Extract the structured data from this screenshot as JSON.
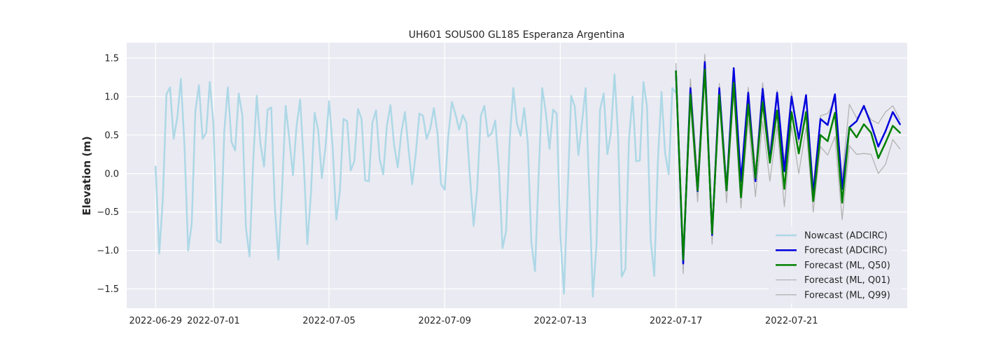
{
  "chart_data": {
    "type": "line",
    "title": "UH601 SOUS00 GL185 Esperanza Argentina",
    "xlabel": "",
    "ylabel": "Elevation (m)",
    "x_unit": "date",
    "xlim": [
      "2022-06-28T00:00",
      "2022-07-25T00:00"
    ],
    "ylim": [
      -1.75,
      1.7
    ],
    "xticks": [
      "2022-06-29",
      "2022-07-01",
      "2022-07-05",
      "2022-07-09",
      "2022-07-13",
      "2022-07-17",
      "2022-07-21"
    ],
    "yticks": [
      1.5,
      1.0,
      0.5,
      0.0,
      -0.5,
      -1.0,
      -1.5
    ],
    "ytick_labels": [
      "1.5",
      "1.0",
      "0.5",
      "0.0",
      "−0.5",
      "−1.0",
      "−1.5"
    ],
    "grid": true,
    "background": "#eaeaf2",
    "legend_position": "lower right",
    "series": [
      {
        "name": "Nowcast (ADCIRC)",
        "color": "#add8e6",
        "width": 2.5,
        "x": [
          "2022-06-29T00:00",
          "2022-06-29T03:00",
          "2022-06-29T06:00",
          "2022-06-29T09:00",
          "2022-06-29T12:00",
          "2022-06-29T15:00",
          "2022-06-29T18:00",
          "2022-06-29T21:00",
          "2022-06-30T00:00",
          "2022-06-30T03:00",
          "2022-06-30T06:00",
          "2022-06-30T09:00",
          "2022-06-30T12:00",
          "2022-06-30T15:00",
          "2022-06-30T18:00",
          "2022-06-30T21:00",
          "2022-07-01T00:00",
          "2022-07-01T03:00",
          "2022-07-01T06:00",
          "2022-07-01T09:00",
          "2022-07-01T12:00",
          "2022-07-01T15:00",
          "2022-07-01T18:00",
          "2022-07-01T21:00",
          "2022-07-02T00:00",
          "2022-07-02T03:00",
          "2022-07-02T06:00",
          "2022-07-02T09:00",
          "2022-07-02T12:00",
          "2022-07-02T15:00",
          "2022-07-02T18:00",
          "2022-07-02T21:00",
          "2022-07-03T00:00",
          "2022-07-03T03:00",
          "2022-07-03T06:00",
          "2022-07-03T09:00",
          "2022-07-03T12:00",
          "2022-07-03T15:00",
          "2022-07-03T18:00",
          "2022-07-03T21:00",
          "2022-07-04T00:00",
          "2022-07-04T03:00",
          "2022-07-04T06:00",
          "2022-07-04T09:00",
          "2022-07-04T12:00",
          "2022-07-04T15:00",
          "2022-07-04T18:00",
          "2022-07-04T21:00",
          "2022-07-05T00:00",
          "2022-07-05T03:00",
          "2022-07-05T06:00",
          "2022-07-05T09:00",
          "2022-07-05T12:00",
          "2022-07-05T15:00",
          "2022-07-05T18:00",
          "2022-07-05T21:00",
          "2022-07-06T00:00",
          "2022-07-06T03:00",
          "2022-07-06T06:00",
          "2022-07-06T09:00",
          "2022-07-06T12:00",
          "2022-07-06T15:00",
          "2022-07-06T18:00",
          "2022-07-06T21:00",
          "2022-07-07T00:00",
          "2022-07-07T03:00",
          "2022-07-07T06:00",
          "2022-07-07T09:00",
          "2022-07-07T12:00",
          "2022-07-07T15:00",
          "2022-07-07T18:00",
          "2022-07-07T21:00",
          "2022-07-08T00:00",
          "2022-07-08T03:00",
          "2022-07-08T06:00",
          "2022-07-08T09:00",
          "2022-07-08T12:00",
          "2022-07-08T15:00",
          "2022-07-08T18:00",
          "2022-07-08T21:00",
          "2022-07-09T00:00",
          "2022-07-09T03:00",
          "2022-07-09T06:00",
          "2022-07-09T09:00",
          "2022-07-09T12:00",
          "2022-07-09T15:00",
          "2022-07-09T18:00",
          "2022-07-09T21:00",
          "2022-07-10T00:00",
          "2022-07-10T03:00",
          "2022-07-10T06:00",
          "2022-07-10T09:00",
          "2022-07-10T12:00",
          "2022-07-10T15:00",
          "2022-07-10T18:00",
          "2022-07-10T21:00",
          "2022-07-11T00:00",
          "2022-07-11T03:00",
          "2022-07-11T06:00",
          "2022-07-11T09:00",
          "2022-07-11T12:00",
          "2022-07-11T15:00",
          "2022-07-11T18:00",
          "2022-07-11T21:00",
          "2022-07-12T00:00",
          "2022-07-12T03:00",
          "2022-07-12T06:00",
          "2022-07-12T09:00",
          "2022-07-12T12:00",
          "2022-07-12T15:00",
          "2022-07-12T18:00",
          "2022-07-12T21:00",
          "2022-07-13T00:00",
          "2022-07-13T03:00",
          "2022-07-13T06:00",
          "2022-07-13T09:00",
          "2022-07-13T12:00",
          "2022-07-13T15:00",
          "2022-07-13T18:00",
          "2022-07-13T21:00",
          "2022-07-14T00:00",
          "2022-07-14T03:00",
          "2022-07-14T06:00",
          "2022-07-14T09:00",
          "2022-07-14T12:00",
          "2022-07-14T15:00",
          "2022-07-14T18:00",
          "2022-07-14T21:00",
          "2022-07-15T00:00",
          "2022-07-15T03:00",
          "2022-07-15T06:00",
          "2022-07-15T09:00",
          "2022-07-15T12:00",
          "2022-07-15T15:00",
          "2022-07-15T18:00",
          "2022-07-15T21:00",
          "2022-07-16T00:00",
          "2022-07-16T03:00",
          "2022-07-16T06:00",
          "2022-07-16T09:00",
          "2022-07-16T12:00",
          "2022-07-16T15:00",
          "2022-07-16T18:00",
          "2022-07-16T21:00",
          "2022-07-17T00:00"
        ],
        "y": [
          0.09,
          -1.04,
          -0.33,
          1.03,
          1.12,
          0.45,
          0.73,
          1.23,
          0.35,
          -1.0,
          -0.65,
          0.81,
          1.15,
          0.45,
          0.53,
          1.19,
          0.64,
          -0.87,
          -0.9,
          0.55,
          1.12,
          0.41,
          0.3,
          1.04,
          0.76,
          -0.7,
          -1.08,
          0.16,
          1.01,
          0.39,
          0.09,
          0.83,
          0.86,
          -0.43,
          -1.12,
          -0.2,
          0.88,
          0.45,
          -0.02,
          0.61,
          0.96,
          0.15,
          -0.92,
          -0.25,
          0.79,
          0.56,
          -0.06,
          0.34,
          0.94,
          0.35,
          -0.6,
          -0.22,
          0.71,
          0.68,
          0.04,
          0.16,
          0.84,
          0.71,
          -0.09,
          -0.1,
          0.66,
          0.82,
          0.19,
          -0.01,
          0.62,
          0.89,
          0.37,
          0.08,
          0.53,
          0.8,
          0.32,
          -0.14,
          0.26,
          0.78,
          0.75,
          0.45,
          0.58,
          0.85,
          0.53,
          -0.14,
          -0.21,
          0.49,
          0.93,
          0.77,
          0.57,
          0.76,
          0.66,
          -0.05,
          -0.68,
          -0.2,
          0.75,
          0.88,
          0.48,
          0.52,
          0.69,
          0.07,
          -0.97,
          -0.75,
          0.44,
          1.11,
          0.65,
          0.49,
          0.85,
          0.4,
          -0.9,
          -1.27,
          -0.02,
          1.11,
          0.79,
          0.32,
          0.83,
          0.78,
          -0.78,
          -1.56,
          -0.29,
          1.01,
          0.87,
          0.24,
          0.66,
          1.11,
          -0.19,
          -1.6,
          -0.93,
          0.83,
          1.04,
          0.25,
          0.53,
          1.29,
          0.49,
          -1.34,
          -1.24,
          0.44,
          1.0,
          0.16,
          0.17,
          1.19,
          0.87,
          -0.86,
          -1.33,
          0.15,
          1.06,
          0.27,
          -0.01,
          1.11,
          1.05
        ]
      },
      {
        "name": "Forecast (ADCIRC)",
        "color": "#0000dd",
        "width": 2.5,
        "x": [
          "2022-07-17T00:00",
          "2022-07-17T06:00",
          "2022-07-17T12:00",
          "2022-07-17T18:00",
          "2022-07-18T00:00",
          "2022-07-18T06:00",
          "2022-07-18T12:00",
          "2022-07-18T18:00",
          "2022-07-19T00:00",
          "2022-07-19T06:00",
          "2022-07-19T12:00",
          "2022-07-19T18:00",
          "2022-07-20T00:00",
          "2022-07-20T06:00",
          "2022-07-20T12:00",
          "2022-07-20T18:00",
          "2022-07-21T00:00",
          "2022-07-21T06:00",
          "2022-07-21T12:00",
          "2022-07-21T18:00",
          "2022-07-22T00:00",
          "2022-07-22T06:00",
          "2022-07-22T12:00",
          "2022-07-22T18:00",
          "2022-07-23T00:00",
          "2022-07-23T06:00",
          "2022-07-23T12:00",
          "2022-07-23T18:00",
          "2022-07-24T00:00",
          "2022-07-24T06:00",
          "2022-07-24T12:00",
          "2022-07-24T18:00"
        ],
        "y": [
          1.33,
          -1.17,
          1.11,
          -0.23,
          1.45,
          -0.8,
          1.11,
          -0.22,
          1.37,
          -0.1,
          1.05,
          -0.1,
          1.1,
          0.17,
          1.05,
          0.03,
          1.0,
          0.45,
          1.02,
          -0.27,
          0.71,
          0.63,
          1.03,
          -0.2,
          0.6,
          0.68,
          0.88,
          0.64,
          0.35,
          0.55,
          0.8,
          0.64
        ]
      },
      {
        "name": "Forecast (ML, Q50)",
        "color": "#008000",
        "width": 2.5,
        "x": [
          "2022-07-17T00:00",
          "2022-07-17T06:00",
          "2022-07-17T12:00",
          "2022-07-17T18:00",
          "2022-07-18T00:00",
          "2022-07-18T06:00",
          "2022-07-18T12:00",
          "2022-07-18T18:00",
          "2022-07-19T00:00",
          "2022-07-19T06:00",
          "2022-07-19T12:00",
          "2022-07-19T18:00",
          "2022-07-20T00:00",
          "2022-07-20T06:00",
          "2022-07-20T12:00",
          "2022-07-20T18:00",
          "2022-07-21T00:00",
          "2022-07-21T06:00",
          "2022-07-21T12:00",
          "2022-07-21T18:00",
          "2022-07-22T00:00",
          "2022-07-22T06:00",
          "2022-07-22T12:00",
          "2022-07-22T18:00",
          "2022-07-23T00:00",
          "2022-07-23T06:00",
          "2022-07-23T12:00",
          "2022-07-23T18:00",
          "2022-07-24T00:00",
          "2022-07-24T06:00",
          "2022-07-24T12:00",
          "2022-07-24T18:00"
        ],
        "y": [
          1.33,
          -1.12,
          1.03,
          -0.22,
          1.35,
          -0.78,
          1.02,
          -0.22,
          1.18,
          -0.31,
          0.9,
          -0.06,
          0.93,
          0.14,
          0.82,
          -0.2,
          0.8,
          0.26,
          0.8,
          -0.36,
          0.5,
          0.42,
          0.79,
          -0.38,
          0.6,
          0.47,
          0.64,
          0.53,
          0.2,
          0.4,
          0.62,
          0.53
        ]
      },
      {
        "name": "Forecast (ML, Q01)",
        "color": "#b3b3b3",
        "width": 1.3,
        "x": [
          "2022-07-17T00:00",
          "2022-07-17T06:00",
          "2022-07-17T12:00",
          "2022-07-17T18:00",
          "2022-07-18T00:00",
          "2022-07-18T06:00",
          "2022-07-18T12:00",
          "2022-07-18T18:00",
          "2022-07-19T00:00",
          "2022-07-19T06:00",
          "2022-07-19T12:00",
          "2022-07-19T18:00",
          "2022-07-20T00:00",
          "2022-07-20T06:00",
          "2022-07-20T12:00",
          "2022-07-20T18:00",
          "2022-07-21T00:00",
          "2022-07-21T06:00",
          "2022-07-21T12:00",
          "2022-07-21T18:00",
          "2022-07-22T00:00",
          "2022-07-22T06:00",
          "2022-07-22T12:00",
          "2022-07-22T18:00",
          "2022-07-23T00:00",
          "2022-07-23T06:00",
          "2022-07-23T12:00",
          "2022-07-23T18:00",
          "2022-07-24T00:00",
          "2022-07-24T06:00",
          "2022-07-24T12:00",
          "2022-07-24T18:00"
        ],
        "y": [
          1.3,
          -1.3,
          0.93,
          -0.37,
          1.3,
          -0.92,
          0.95,
          -0.38,
          1.05,
          -0.45,
          0.7,
          -0.3,
          0.68,
          -0.1,
          0.62,
          -0.43,
          0.62,
          0.0,
          0.6,
          -0.5,
          0.35,
          0.24,
          0.48,
          -0.6,
          0.36,
          0.25,
          0.26,
          0.25,
          0.0,
          0.12,
          0.44,
          0.32
        ]
      },
      {
        "name": "Forecast (ML, Q99)",
        "color": "#b3b3b3",
        "width": 1.3,
        "x": [
          "2022-07-17T00:00",
          "2022-07-17T06:00",
          "2022-07-17T12:00",
          "2022-07-17T18:00",
          "2022-07-18T00:00",
          "2022-07-18T06:00",
          "2022-07-18T12:00",
          "2022-07-18T18:00",
          "2022-07-19T00:00",
          "2022-07-19T06:00",
          "2022-07-19T12:00",
          "2022-07-19T18:00",
          "2022-07-20T00:00",
          "2022-07-20T06:00",
          "2022-07-20T12:00",
          "2022-07-20T18:00",
          "2022-07-21T00:00",
          "2022-07-21T06:00",
          "2022-07-21T12:00",
          "2022-07-21T18:00",
          "2022-07-22T00:00",
          "2022-07-22T06:00",
          "2022-07-22T12:00",
          "2022-07-22T18:00",
          "2022-07-23T00:00",
          "2022-07-23T06:00",
          "2022-07-23T12:00",
          "2022-07-23T18:00",
          "2022-07-24T00:00",
          "2022-07-24T06:00",
          "2022-07-24T12:00",
          "2022-07-24T18:00"
        ],
        "y": [
          1.43,
          -1.05,
          1.23,
          -0.05,
          1.55,
          -0.7,
          1.17,
          -0.1,
          1.21,
          -0.15,
          1.12,
          0.05,
          1.18,
          0.3,
          1.08,
          0.15,
          1.06,
          0.4,
          1.0,
          -0.15,
          0.75,
          0.78,
          0.95,
          -0.05,
          0.9,
          0.72,
          0.85,
          0.7,
          0.65,
          0.8,
          0.88,
          0.7
        ]
      }
    ]
  }
}
